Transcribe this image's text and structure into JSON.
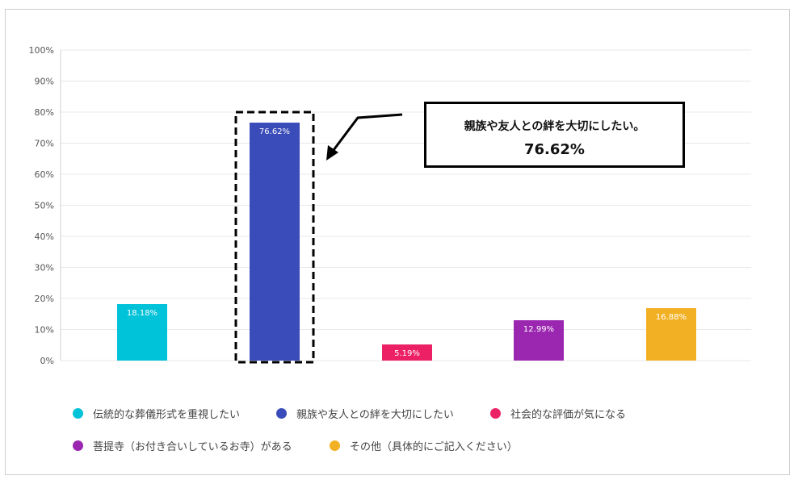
{
  "chart_data": {
    "type": "bar",
    "categories": [
      "伝統的な葬儀形式を重視したい",
      "親族や友人との絆を大切にしたい",
      "社会的な評価が気になる",
      "菩提寺（お付き合いしているお寺）がある",
      "その他（具体的にご記入ください）"
    ],
    "values": [
      18.18,
      76.62,
      5.19,
      12.99,
      16.88
    ],
    "value_labels": [
      "18.18%",
      "76.62%",
      "5.19%",
      "12.99%",
      "16.88%"
    ],
    "colors": [
      "#00c2d8",
      "#3a4cb9",
      "#ec2064",
      "#9b27b0",
      "#f2b124"
    ],
    "ylim": [
      0,
      100
    ],
    "yticks": [
      "0%",
      "10%",
      "20%",
      "30%",
      "40%",
      "50%",
      "60%",
      "70%",
      "80%",
      "90%",
      "100%"
    ],
    "grid": true,
    "legend_position": "bottom",
    "highlight_index": 1
  },
  "callout": {
    "label": "親族や友人との絆を大切にしたい。",
    "value": "76.62%"
  }
}
